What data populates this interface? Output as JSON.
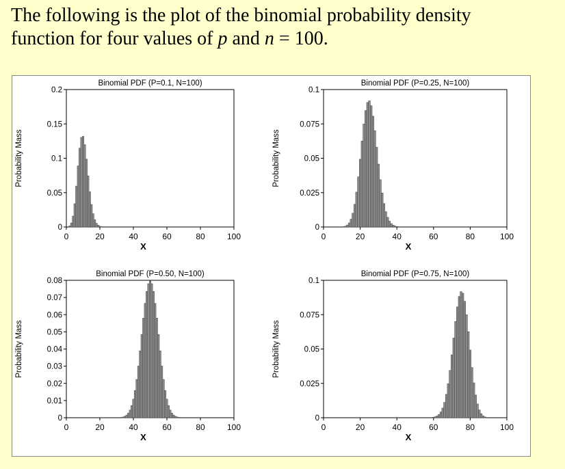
{
  "intro": {
    "line1": "The following is the plot of the binomial probability density",
    "line2_a": "function for four values of ",
    "line2_p": "p",
    "line2_b": " and ",
    "line2_n": "n",
    "line2_c": " = 100."
  },
  "colors": {
    "page_bg": "#ffffcc",
    "bar_fill": "#8c8c8c",
    "bar_stroke": "#404040",
    "axis": "#000000"
  },
  "chart_data": [
    {
      "type": "bar",
      "title": "Binomial PDF (P=0.1, N=100)",
      "xlabel": "X",
      "ylabel": "Probability Mass",
      "n": 100,
      "p": 0.1,
      "xlim": [
        0,
        100
      ],
      "ylim": [
        0,
        0.2
      ],
      "xticks": [
        "0",
        "20",
        "40",
        "60",
        "80",
        "100"
      ],
      "yticks": [
        "0",
        "0.05",
        "0.1",
        "0.15",
        "0.2"
      ],
      "grid": false
    },
    {
      "type": "bar",
      "title": "Binomial PDF (P=0.25, N=100)",
      "xlabel": "X",
      "ylabel": "Probability Mass",
      "n": 100,
      "p": 0.25,
      "xlim": [
        0,
        100
      ],
      "ylim": [
        0,
        0.1
      ],
      "xticks": [
        "0",
        "20",
        "40",
        "60",
        "80",
        "100"
      ],
      "yticks": [
        "0",
        "0.025",
        "0.05",
        "0.075",
        "0.1"
      ],
      "grid": false
    },
    {
      "type": "bar",
      "title": "Binomial PDF (P=0.50, N=100)",
      "xlabel": "X",
      "ylabel": "Probability Mass",
      "n": 100,
      "p": 0.5,
      "xlim": [
        0,
        100
      ],
      "ylim": [
        0,
        0.08
      ],
      "xticks": [
        "0",
        "20",
        "40",
        "60",
        "80",
        "100"
      ],
      "yticks": [
        "0",
        "0.01",
        "0.02",
        "0.03",
        "0.04",
        "0.05",
        "0.06",
        "0.07",
        "0.08"
      ],
      "grid": false
    },
    {
      "type": "bar",
      "title": "Binomial PDF (P=0.75, N=100)",
      "xlabel": "X",
      "ylabel": "Probability Mass",
      "n": 100,
      "p": 0.75,
      "xlim": [
        0,
        100
      ],
      "ylim": [
        0,
        0.1
      ],
      "xticks": [
        "0",
        "20",
        "40",
        "60",
        "80",
        "100"
      ],
      "yticks": [
        "0",
        "0.025",
        "0.05",
        "0.075",
        "0.1"
      ],
      "grid": false
    }
  ]
}
